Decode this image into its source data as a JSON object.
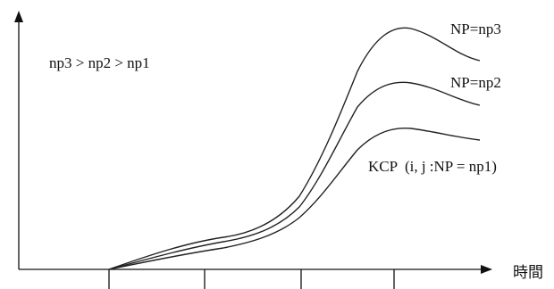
{
  "chart_data": {
    "type": "line",
    "x_axis_label": "時間",
    "y_axis_label": "",
    "annotation": "np3 > np2 > np1",
    "series": [
      {
        "name": "NP=np3"
      },
      {
        "name": "NP=np2"
      },
      {
        "name": "KCP  (i, j :NP = np1)"
      }
    ],
    "x_tick_count": 4,
    "grid": false,
    "colors": {
      "line": "#222222",
      "axis": "#111111",
      "text": "#111111"
    }
  }
}
